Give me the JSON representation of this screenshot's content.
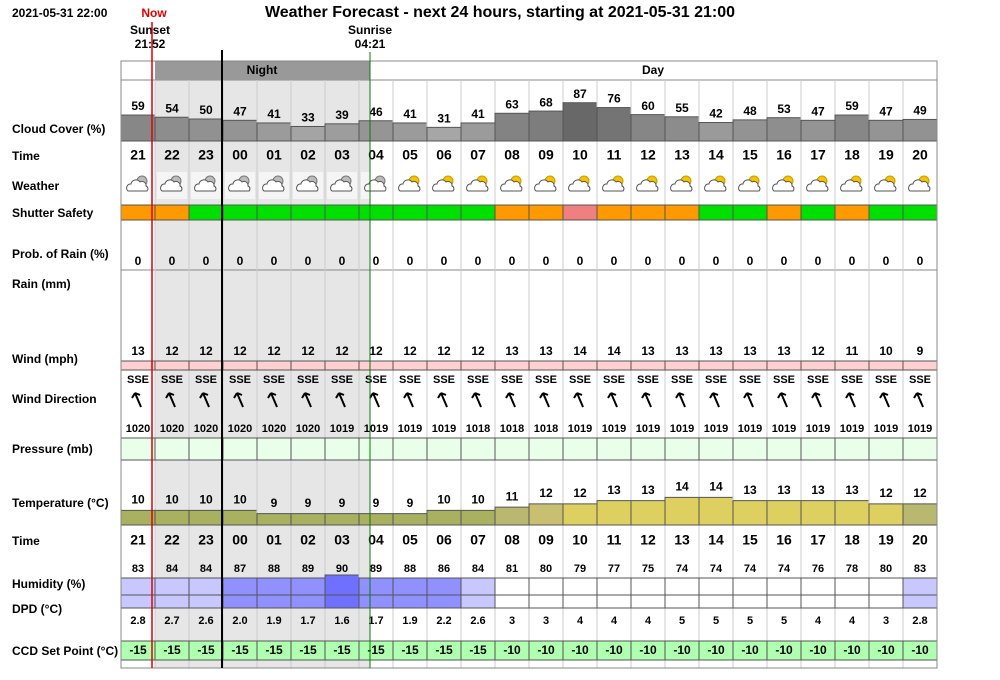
{
  "header": {
    "timestamp": "2021-05-31 22:00",
    "now": "Now",
    "title": "Weather Forecast - next 24 hours, starting at 2021-05-31 21:00",
    "sunset": {
      "label": "Sunset",
      "time": "21:52"
    },
    "sunrise": {
      "label": "Sunrise",
      "time": "04:21"
    }
  },
  "periods": {
    "night": "Night",
    "day": "Day"
  },
  "labels": {
    "cloud_cover": "Cloud Cover (%)",
    "time": "Time",
    "weather": "Weather",
    "shutter_safety": "Shutter Safety",
    "rain_probability": "Prob. of Rain (%)",
    "rain": "Rain (mm)",
    "wind": "Wind (mph)",
    "wind_direction": "Wind Direction",
    "pressure": "Pressure (mb)",
    "temperature": "Temperature (°C)",
    "humidity": "Humidity (%)",
    "dpd": "DPD (°C)",
    "ccd_set_point": "CCD Set Point (°C)"
  },
  "hours": [
    "21",
    "22",
    "23",
    "00",
    "01",
    "02",
    "03",
    "04",
    "05",
    "06",
    "07",
    "08",
    "09",
    "10",
    "11",
    "12",
    "13",
    "14",
    "15",
    "16",
    "17",
    "18",
    "19",
    "20"
  ],
  "cloud_cover": [
    59,
    54,
    50,
    47,
    41,
    33,
    39,
    46,
    41,
    31,
    41,
    63,
    68,
    87,
    76,
    60,
    55,
    42,
    48,
    53,
    47,
    59,
    47,
    49
  ],
  "shutter_safety": [
    "#ff9900",
    "#ff9900",
    "#00e000",
    "#00e000",
    "#00e000",
    "#00e000",
    "#00e000",
    "#00e000",
    "#00e000",
    "#00e000",
    "#00e000",
    "#ff9900",
    "#ff9900",
    "#f08080",
    "#ff9900",
    "#ff9900",
    "#ff9900",
    "#00e000",
    "#00e000",
    "#ff9900",
    "#00e000",
    "#ff9900",
    "#00e000",
    "#00e000"
  ],
  "rain_probability": [
    0,
    0,
    0,
    0,
    0,
    0,
    0,
    0,
    0,
    0,
    0,
    0,
    0,
    0,
    0,
    0,
    0,
    0,
    0,
    0,
    0,
    0,
    0,
    0
  ],
  "wind": [
    13,
    12,
    12,
    12,
    12,
    12,
    12,
    12,
    12,
    12,
    12,
    13,
    13,
    14,
    14,
    13,
    13,
    13,
    13,
    13,
    12,
    11,
    10,
    9
  ],
  "wind_direction": [
    "SSE",
    "SSE",
    "SSE",
    "SSE",
    "SSE",
    "SSE",
    "SSE",
    "SSE",
    "SSE",
    "SSE",
    "SSE",
    "SSE",
    "SSE",
    "SSE",
    "SSE",
    "SSE",
    "SSE",
    "SSE",
    "SSE",
    "SSE",
    "SSE",
    "SSE",
    "SSE",
    "SSE"
  ],
  "pressure": [
    1020,
    1020,
    1020,
    1020,
    1020,
    1020,
    1019,
    1019,
    1019,
    1019,
    1018,
    1018,
    1018,
    1019,
    1019,
    1019,
    1019,
    1019,
    1019,
    1019,
    1019,
    1019,
    1019,
    1019
  ],
  "temperature": [
    10,
    10,
    10,
    10,
    9,
    9,
    9,
    9,
    9,
    10,
    10,
    11,
    12,
    12,
    13,
    13,
    14,
    14,
    13,
    13,
    13,
    13,
    12,
    12
  ],
  "humidity": [
    83,
    84,
    84,
    87,
    88,
    89,
    90,
    89,
    88,
    86,
    84,
    81,
    80,
    79,
    77,
    75,
    74,
    74,
    74,
    74,
    76,
    78,
    80,
    83
  ],
  "dpd": [
    "2.8",
    "2.7",
    "2.6",
    "2.0",
    "1.9",
    "1.7",
    "1.6",
    "1.7",
    "1.9",
    "2.2",
    "2.6",
    "3",
    "3",
    "4",
    "4",
    "4",
    "5",
    "5",
    "5",
    "5",
    "4",
    "4",
    "3",
    "2.8"
  ],
  "ccd_set_point": [
    -15,
    -15,
    -15,
    -15,
    -15,
    -15,
    -15,
    -15,
    -15,
    -15,
    -15,
    -10,
    -10,
    -10,
    -10,
    -10,
    -10,
    -10,
    -10,
    -10,
    -10,
    -10,
    -10,
    -10
  ]
}
